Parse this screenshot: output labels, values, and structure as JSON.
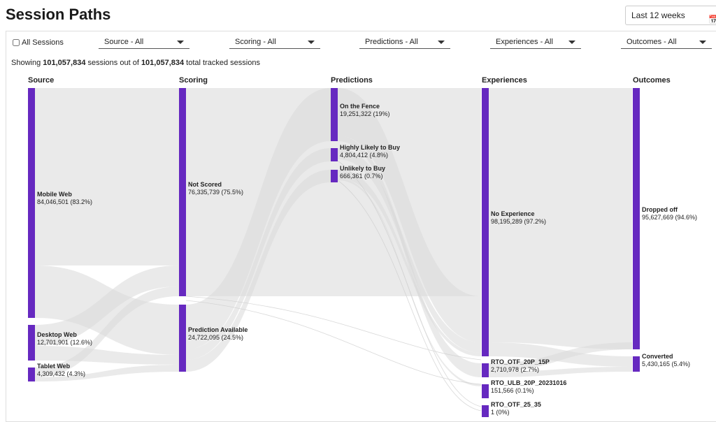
{
  "header": {
    "title": "Session Paths",
    "date_range": "Last 12 weeks"
  },
  "filters": {
    "all_sessions": "All Sessions",
    "source": "Source - All",
    "scoring": "Scoring - All",
    "predictions": "Predictions - All",
    "experiences": "Experiences - All",
    "outcomes": "Outcomes - All"
  },
  "summary": {
    "prefix": "Showing",
    "shown": "101,057,834",
    "middle": "sessions out of",
    "total": "101,057,834",
    "suffix": "total tracked sessions"
  },
  "columns": [
    "Source",
    "Scoring",
    "Predictions",
    "Experiences",
    "Outcomes"
  ],
  "nodes": {
    "mobile_web": {
      "name": "Mobile Web",
      "value": "84,046,501 (83.2%)"
    },
    "desktop_web": {
      "name": "Desktop Web",
      "value": "12,701,901 (12.6%)"
    },
    "tablet_web": {
      "name": "Tablet Web",
      "value": "4,309,432 (4.3%)"
    },
    "not_scored": {
      "name": "Not Scored",
      "value": "76,335,739 (75.5%)"
    },
    "prediction_available": {
      "name": "Prediction Available",
      "value": "24,722,095 (24.5%)"
    },
    "on_the_fence": {
      "name": "On the Fence",
      "value": "19,251,322 (19%)"
    },
    "highly_likely": {
      "name": "Highly Likely to Buy",
      "value": "4,804,412 (4.8%)"
    },
    "unlikely": {
      "name": "Unlikely to Buy",
      "value": "666,361 (0.7%)"
    },
    "no_experience": {
      "name": "No Experience",
      "value": "98,195,289 (97.2%)"
    },
    "rto_otf_20p": {
      "name": "RTO_OTF_20P_15P",
      "value": "2,710,978 (2.7%)"
    },
    "rto_ulb": {
      "name": "RTO_ULB_20P_20231016",
      "value": "151,566 (0.1%)"
    },
    "rto_otf_25": {
      "name": "RTO_OTF_25_35",
      "value": "1 (0%)"
    },
    "dropped_off": {
      "name": "Dropped off",
      "value": "95,627,669 (94.6%)"
    },
    "converted": {
      "name": "Converted",
      "value": "5,430,165 (5.4%)"
    }
  },
  "colors": {
    "node": "#6629c0",
    "flow": "#d9d9d9"
  }
}
